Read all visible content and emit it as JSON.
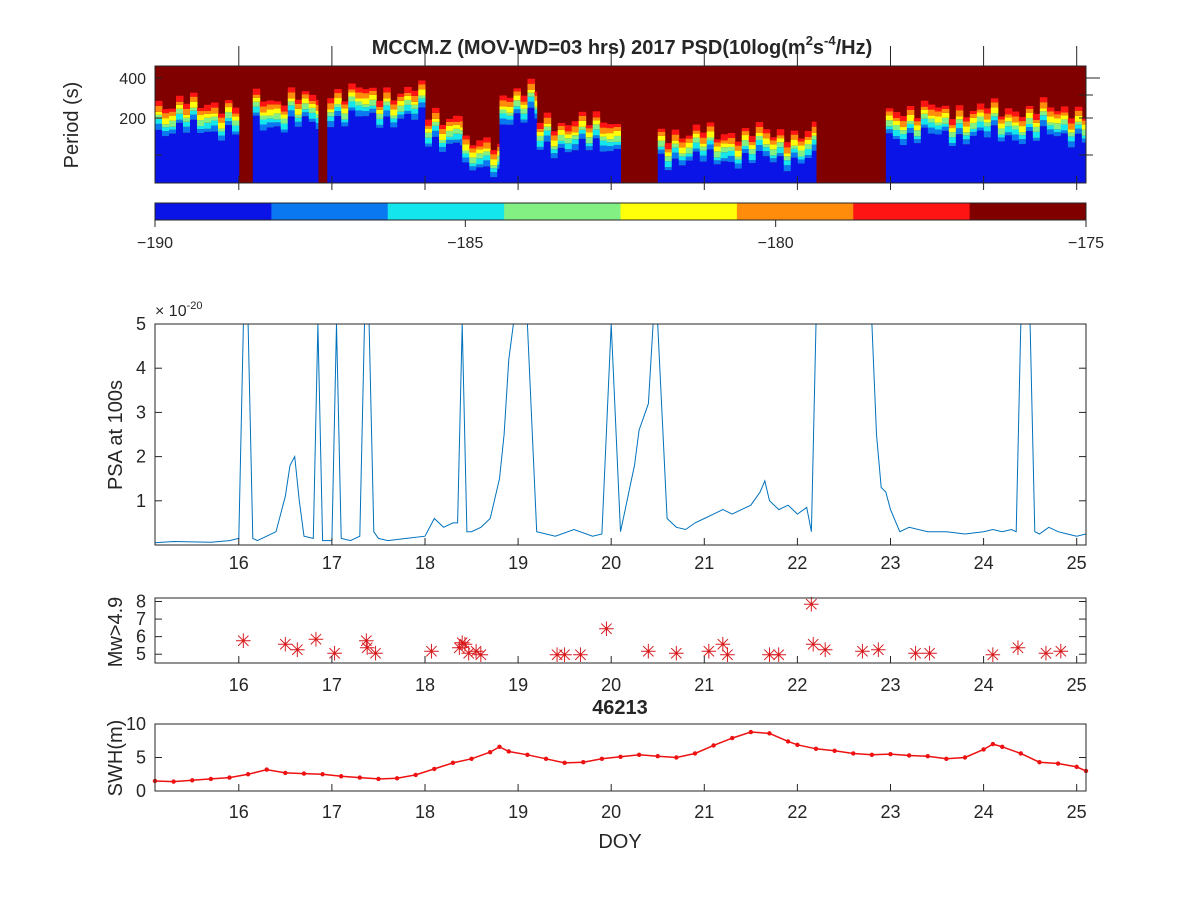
{
  "figure": {
    "title_main": "MCCM.Z (MOV-WD=03 hrs) 2017 PSD(10log(m",
    "title_sup1": "2",
    "title_mid": "s",
    "title_sup2": "-4",
    "title_end": "/Hz)"
  },
  "chart_data": [
    {
      "type": "heatmap",
      "ylabel": "Period (s)",
      "y_ticks": [
        "200",
        "400"
      ],
      "x_range": [
        15.1,
        25.1
      ],
      "colormap": "jet",
      "colorbar": {
        "clim": [
          -190,
          -175
        ],
        "tick_labels": [
          "-190",
          "-185",
          "-180",
          "-175"
        ],
        "colors": [
          "#0a14e6",
          "#0a78f0",
          "#14e6ee",
          "#82f082",
          "#ffff0a",
          "#ff8c0a",
          "#ff1414",
          "#800000"
        ]
      },
      "columns": [
        {
          "day_start": 15.1,
          "day_end": 16.0,
          "quiet_fraction": 0.45
        },
        {
          "day_start": 16.0,
          "day_end": 16.15,
          "quiet_fraction": 0.0
        },
        {
          "day_start": 16.15,
          "day_end": 16.85,
          "quiet_fraction": 0.5
        },
        {
          "day_start": 16.85,
          "day_end": 16.95,
          "quiet_fraction": 0.0
        },
        {
          "day_start": 16.95,
          "day_end": 18.0,
          "quiet_fraction": 0.55
        },
        {
          "day_start": 18.0,
          "day_end": 18.4,
          "quiet_fraction": 0.35
        },
        {
          "day_start": 18.4,
          "day_end": 18.8,
          "quiet_fraction": 0.1
        },
        {
          "day_start": 18.8,
          "day_end": 19.2,
          "quiet_fraction": 0.55
        },
        {
          "day_start": 19.2,
          "day_end": 20.1,
          "quiet_fraction": 0.3
        },
        {
          "day_start": 20.1,
          "day_end": 20.5,
          "quiet_fraction": 0.0
        },
        {
          "day_start": 20.5,
          "day_end": 22.2,
          "quiet_fraction": 0.2
        },
        {
          "day_start": 22.2,
          "day_end": 22.95,
          "quiet_fraction": 0.0
        },
        {
          "day_start": 22.95,
          "day_end": 25.1,
          "quiet_fraction": 0.4
        }
      ]
    },
    {
      "type": "line",
      "ylabel": "PSA at 100s",
      "exponent_label": "× 10",
      "exponent_power": "-20",
      "ylim": [
        0,
        5
      ],
      "y_ticks": [
        "1",
        "2",
        "3",
        "4",
        "5"
      ],
      "xlim": [
        15.1,
        25.1
      ],
      "x_ticks": [
        "16",
        "17",
        "18",
        "19",
        "20",
        "21",
        "22",
        "23",
        "24",
        "25"
      ],
      "color": "#0072bd",
      "x": [
        15.1,
        15.3,
        15.5,
        15.7,
        15.9,
        16.0,
        16.05,
        16.1,
        16.15,
        16.2,
        16.3,
        16.4,
        16.5,
        16.55,
        16.6,
        16.65,
        16.7,
        16.8,
        16.85,
        16.9,
        17.0,
        17.05,
        17.1,
        17.2,
        17.3,
        17.35,
        17.4,
        17.45,
        17.5,
        17.6,
        17.8,
        18.0,
        18.1,
        18.2,
        18.3,
        18.35,
        18.4,
        18.45,
        18.5,
        18.6,
        18.7,
        18.8,
        18.85,
        18.9,
        18.95,
        19.0,
        19.05,
        19.1,
        19.2,
        19.4,
        19.6,
        19.8,
        19.9,
        20.0,
        20.1,
        20.15,
        20.2,
        20.25,
        20.3,
        20.4,
        20.45,
        20.5,
        20.6,
        20.7,
        20.8,
        20.9,
        21.0,
        21.1,
        21.2,
        21.3,
        21.4,
        21.5,
        21.6,
        21.65,
        21.7,
        21.8,
        21.9,
        22.0,
        22.1,
        22.15,
        22.2,
        22.4,
        22.6,
        22.8,
        22.85,
        22.9,
        22.95,
        23.0,
        23.1,
        23.2,
        23.4,
        23.6,
        23.8,
        24.0,
        24.1,
        24.2,
        24.3,
        24.35,
        24.4,
        24.45,
        24.5,
        24.55,
        24.6,
        24.7,
        24.8,
        24.9,
        25.0,
        25.1
      ],
      "y": [
        0.05,
        0.08,
        0.07,
        0.06,
        0.1,
        0.15,
        5,
        5,
        0.15,
        0.1,
        0.2,
        0.3,
        1.1,
        1.8,
        2.0,
        1.0,
        0.2,
        0.15,
        5,
        0.1,
        0.1,
        5,
        0.15,
        0.1,
        0.2,
        5,
        5,
        0.3,
        0.15,
        0.1,
        0.15,
        0.2,
        0.6,
        0.4,
        0.5,
        0.5,
        5,
        0.3,
        0.3,
        0.4,
        0.6,
        1.5,
        2.5,
        4.2,
        5,
        5,
        5,
        5,
        0.3,
        0.2,
        0.35,
        0.2,
        0.25,
        5,
        0.3,
        0.8,
        1.3,
        1.8,
        2.6,
        3.2,
        5,
        5,
        0.6,
        0.4,
        0.35,
        0.5,
        0.6,
        0.7,
        0.8,
        0.7,
        0.8,
        0.9,
        1.2,
        1.45,
        1.0,
        0.8,
        0.9,
        0.7,
        0.85,
        0.3,
        5,
        5,
        5,
        5,
        2.5,
        1.3,
        1.2,
        0.8,
        0.3,
        0.4,
        0.3,
        0.3,
        0.25,
        0.3,
        0.35,
        0.3,
        0.35,
        0.3,
        5,
        5,
        5,
        0.3,
        0.25,
        0.4,
        0.3,
        0.25,
        0.2,
        0.25
      ]
    },
    {
      "type": "scatter",
      "ylabel": "Mw>4.9",
      "ylim": [
        4.5,
        8.2
      ],
      "y_ticks": [
        "5",
        "6",
        "7",
        "8"
      ],
      "xlim": [
        15.1,
        25.1
      ],
      "x_ticks": [
        "16",
        "17",
        "18",
        "19",
        "20",
        "21",
        "22",
        "23",
        "24",
        "25"
      ],
      "marker": "*",
      "color": "#d7191c",
      "x": [
        16.05,
        16.5,
        16.63,
        16.83,
        17.03,
        17.37,
        17.38,
        17.47,
        18.07,
        18.37,
        18.4,
        18.43,
        18.47,
        18.55,
        18.6,
        19.42,
        19.5,
        19.67,
        19.95,
        20.4,
        20.7,
        21.05,
        21.2,
        21.25,
        21.7,
        21.8,
        22.15,
        22.17,
        22.3,
        22.7,
        22.87,
        23.27,
        23.42,
        24.1,
        24.37,
        24.67,
        24.83
      ],
      "y": [
        5.8,
        5.6,
        5.3,
        5.9,
        5.1,
        5.8,
        5.4,
        5.1,
        5.2,
        5.4,
        5.7,
        5.6,
        5.1,
        5.2,
        5.0,
        5.0,
        5.0,
        5.0,
        6.5,
        5.2,
        5.1,
        5.2,
        5.6,
        5.0,
        5.0,
        5.0,
        7.9,
        5.6,
        5.3,
        5.2,
        5.3,
        5.1,
        5.1,
        5.0,
        5.4,
        5.1,
        5.2
      ]
    },
    {
      "type": "line",
      "title": "46213",
      "ylabel": "SWH(m)",
      "xlabel": "DOY",
      "ylim": [
        0,
        10
      ],
      "y_ticks": [
        "0",
        "5",
        "10"
      ],
      "xlim": [
        15.1,
        25.1
      ],
      "x_ticks": [
        "16",
        "17",
        "18",
        "19",
        "20",
        "21",
        "22",
        "23",
        "24",
        "25"
      ],
      "color": "#ee1111",
      "marker": ".",
      "x": [
        15.1,
        15.3,
        15.5,
        15.7,
        15.9,
        16.1,
        16.3,
        16.5,
        16.7,
        16.9,
        17.1,
        17.3,
        17.5,
        17.7,
        17.9,
        18.1,
        18.3,
        18.5,
        18.7,
        18.8,
        18.9,
        19.1,
        19.3,
        19.5,
        19.7,
        19.9,
        20.1,
        20.3,
        20.5,
        20.7,
        20.9,
        21.1,
        21.3,
        21.5,
        21.7,
        21.9,
        22.0,
        22.2,
        22.4,
        22.6,
        22.8,
        23.0,
        23.2,
        23.4,
        23.6,
        23.8,
        24.0,
        24.1,
        24.2,
        24.4,
        24.6,
        24.8,
        25.0,
        25.1
      ],
      "y": [
        1.5,
        1.4,
        1.6,
        1.8,
        2.0,
        2.5,
        3.2,
        2.7,
        2.6,
        2.5,
        2.2,
        2.0,
        1.8,
        1.9,
        2.4,
        3.3,
        4.2,
        4.8,
        5.8,
        6.6,
        5.9,
        5.4,
        4.8,
        4.2,
        4.3,
        4.8,
        5.1,
        5.4,
        5.2,
        5.0,
        5.6,
        6.8,
        7.9,
        8.8,
        8.6,
        7.4,
        6.9,
        6.3,
        6.0,
        5.6,
        5.4,
        5.5,
        5.3,
        5.2,
        4.8,
        5.0,
        6.2,
        7.0,
        6.6,
        5.6,
        4.3,
        4.1,
        3.6,
        3.0
      ]
    }
  ]
}
